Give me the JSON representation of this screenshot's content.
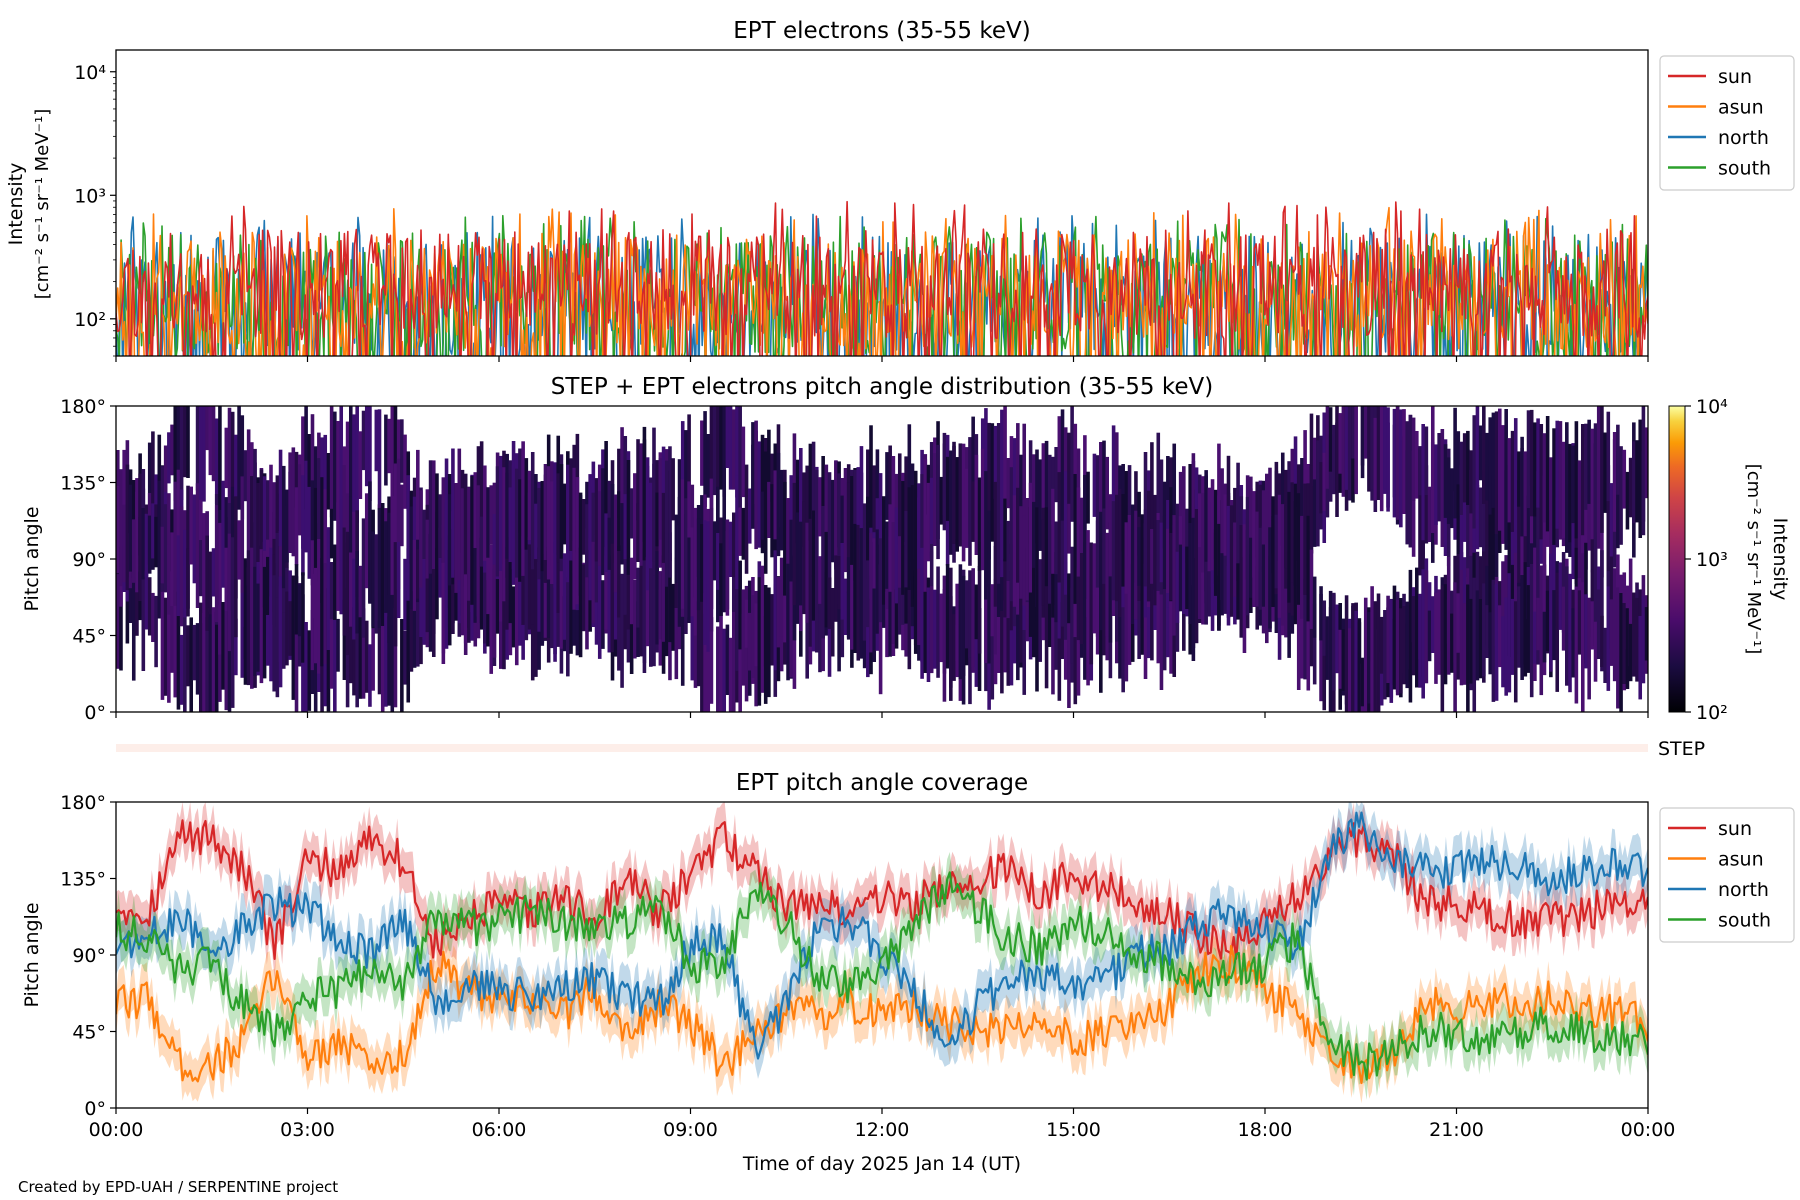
{
  "credit": "Created by EPD-UAH / SERPENTINE project",
  "chart_data": [
    {
      "type": "line",
      "title": "EPT electrons (35-55 keV)",
      "ylabel_line1": "Intensity",
      "ylabel_line2": "[cm⁻² s⁻¹ sr⁻¹ MeV⁻¹]",
      "yscale": "log",
      "ylim": [
        50,
        15000
      ],
      "yticks": [
        {
          "value": 100,
          "label": "10²"
        },
        {
          "value": 1000,
          "label": "10³"
        },
        {
          "value": 10000,
          "label": "10⁴"
        }
      ],
      "x_hours_range": [
        0,
        24
      ],
      "legend_position": "outside-right-top",
      "series": [
        {
          "name": "sun",
          "color": "#d62728",
          "typical": 190,
          "spread": 0.28,
          "seed": 11
        },
        {
          "name": "asun",
          "color": "#ff7f0e",
          "typical": 170,
          "spread": 0.3,
          "seed": 23
        },
        {
          "name": "north",
          "color": "#1f77b4",
          "typical": 150,
          "spread": 0.33,
          "seed": 37
        },
        {
          "name": "south",
          "color": "#2ca02c",
          "typical": 150,
          "spread": 0.33,
          "seed": 41
        }
      ]
    },
    {
      "type": "heatmap",
      "title": "STEP + EPT electrons pitch angle distribution (35-55 keV)",
      "ylabel": "Pitch angle",
      "ylim": [
        0,
        180
      ],
      "yticks": [
        {
          "value": 0,
          "label": "0°"
        },
        {
          "value": 45,
          "label": "45°"
        },
        {
          "value": 90,
          "label": "90°"
        },
        {
          "value": 135,
          "label": "135°"
        },
        {
          "value": 180,
          "label": "180°"
        }
      ],
      "colorbar": {
        "scale": "log",
        "range": [
          100,
          10000
        ],
        "ticks": [
          {
            "value": 100,
            "label": "10²"
          },
          {
            "value": 1000,
            "label": "10³"
          },
          {
            "value": 10000,
            "label": "10⁴"
          }
        ],
        "label_line1": "Intensity",
        "label_line2": "[cm⁻² s⁻¹ sr⁻¹ MeV⁻¹]",
        "colormap": "inferno",
        "dominant_level": 250
      },
      "step_label": "STEP"
    },
    {
      "type": "line",
      "title": "EPT pitch angle coverage",
      "ylabel": "Pitch angle",
      "ylim": [
        0,
        180
      ],
      "yticks": [
        {
          "value": 0,
          "label": "0°"
        },
        {
          "value": 45,
          "label": "45°"
        },
        {
          "value": 90,
          "label": "90°"
        },
        {
          "value": 135,
          "label": "135°"
        },
        {
          "value": 180,
          "label": "180°"
        }
      ],
      "xlabel": "Time of day 2025 Jan 14 (UT)",
      "xticks": [
        {
          "hour": 0,
          "label": "00:00"
        },
        {
          "hour": 3,
          "label": "03:00"
        },
        {
          "hour": 6,
          "label": "06:00"
        },
        {
          "hour": 9,
          "label": "09:00"
        },
        {
          "hour": 12,
          "label": "12:00"
        },
        {
          "hour": 15,
          "label": "15:00"
        },
        {
          "hour": 18,
          "label": "18:00"
        },
        {
          "hour": 21,
          "label": "21:00"
        },
        {
          "hour": 24,
          "label": "00:00"
        }
      ],
      "band_halfwidth_deg": 12,
      "legend_position": "outside-right-top",
      "series": [
        {
          "name": "sun",
          "color": "#d62728",
          "x": [
            0,
            0.5,
            1,
            1.5,
            2,
            2.5,
            3,
            3.5,
            4,
            4.5,
            5,
            5.5,
            6,
            6.5,
            7,
            7.5,
            8,
            8.5,
            9,
            9.5,
            10,
            10.5,
            11,
            11.5,
            12,
            12.5,
            13,
            13.5,
            14,
            14.5,
            15,
            15.5,
            16,
            16.5,
            17,
            17.5,
            18,
            18.5,
            19,
            19.5,
            20,
            20.5,
            21,
            21.5,
            22,
            22.5,
            23,
            23.5,
            24
          ],
          "values": [
            120,
            115,
            160,
            160,
            140,
            95,
            145,
            140,
            160,
            145,
            95,
            110,
            120,
            115,
            125,
            110,
            135,
            115,
            135,
            160,
            140,
            120,
            120,
            115,
            125,
            120,
            130,
            135,
            140,
            125,
            140,
            130,
            120,
            115,
            100,
            95,
            110,
            125,
            150,
            160,
            150,
            120,
            120,
            115,
            110,
            110,
            115,
            120,
            125
          ]
        },
        {
          "name": "asun",
          "color": "#ff7f0e",
          "x": [
            0,
            0.5,
            1,
            1.5,
            2,
            2.5,
            3,
            3.5,
            4,
            4.5,
            5,
            5.5,
            6,
            6.5,
            7,
            7.5,
            8,
            8.5,
            9,
            9.5,
            10,
            10.5,
            11,
            11.5,
            12,
            12.5,
            13,
            13.5,
            14,
            14.5,
            15,
            15.5,
            16,
            16.5,
            17,
            17.5,
            18,
            18.5,
            19,
            19.5,
            20,
            20.5,
            21,
            21.5,
            22,
            22.5,
            23,
            23.5,
            24
          ],
          "values": [
            60,
            65,
            25,
            25,
            40,
            80,
            30,
            40,
            25,
            30,
            85,
            70,
            60,
            65,
            55,
            70,
            45,
            60,
            50,
            25,
            40,
            55,
            55,
            60,
            55,
            60,
            50,
            45,
            45,
            55,
            40,
            45,
            55,
            60,
            80,
            85,
            70,
            55,
            30,
            20,
            30,
            60,
            60,
            65,
            60,
            65,
            60,
            55,
            50
          ]
        },
        {
          "name": "north",
          "color": "#1f77b4",
          "x": [
            0,
            0.5,
            1,
            1.5,
            2,
            2.5,
            3,
            3.5,
            4,
            4.5,
            5,
            5.5,
            6,
            6.5,
            7,
            7.5,
            8,
            8.5,
            9,
            9.5,
            10,
            10.5,
            11,
            11.5,
            12,
            12.5,
            13,
            13.5,
            14,
            14.5,
            15,
            15.5,
            16,
            16.5,
            17,
            17.5,
            18,
            18.5,
            19,
            19.5,
            20,
            20.5,
            21,
            21.5,
            22,
            22.5,
            23,
            23.5,
            24
          ],
          "values": [
            95,
            100,
            110,
            95,
            105,
            120,
            115,
            100,
            90,
            110,
            65,
            70,
            70,
            65,
            70,
            75,
            65,
            60,
            95,
            100,
            35,
            60,
            105,
            110,
            90,
            70,
            35,
            60,
            75,
            80,
            70,
            75,
            90,
            95,
            110,
            115,
            105,
            90,
            150,
            165,
            145,
            140,
            140,
            145,
            140,
            135,
            140,
            145,
            140
          ]
        },
        {
          "name": "south",
          "color": "#2ca02c",
          "x": [
            0,
            0.5,
            1,
            1.5,
            2,
            2.5,
            3,
            3.5,
            4,
            4.5,
            5,
            5.5,
            6,
            6.5,
            7,
            7.5,
            8,
            8.5,
            9,
            9.5,
            10,
            10.5,
            11,
            11.5,
            12,
            12.5,
            13,
            13.5,
            14,
            14.5,
            15,
            15.5,
            16,
            16.5,
            17,
            17.5,
            18,
            18.5,
            19,
            19.5,
            20,
            20.5,
            21,
            21.5,
            22,
            22.5,
            23,
            23.5,
            24
          ],
          "values": [
            105,
            100,
            80,
            85,
            60,
            45,
            65,
            70,
            80,
            70,
            115,
            105,
            110,
            115,
            110,
            105,
            110,
            120,
            85,
            80,
            130,
            110,
            75,
            70,
            85,
            105,
            130,
            115,
            100,
            95,
            110,
            105,
            90,
            85,
            75,
            80,
            85,
            100,
            40,
            25,
            35,
            45,
            45,
            40,
            45,
            50,
            45,
            40,
            40
          ]
        }
      ]
    }
  ]
}
